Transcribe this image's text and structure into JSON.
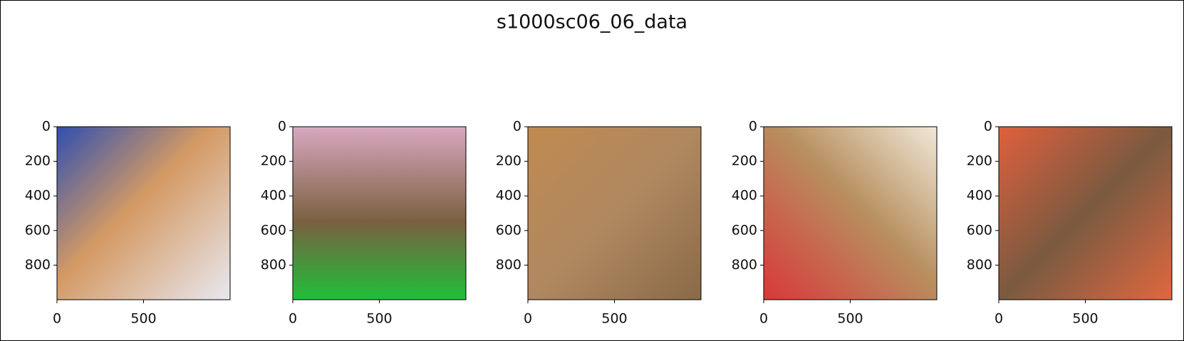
{
  "title": "s1000sc06_06_data",
  "chart_data": [
    {
      "type": "image",
      "xlim": [
        0,
        1000
      ],
      "ylim": [
        1000,
        0
      ],
      "xticks": [
        0,
        500
      ],
      "yticks": [
        0,
        200,
        400,
        600,
        800
      ]
    },
    {
      "type": "image",
      "xlim": [
        0,
        1000
      ],
      "ylim": [
        1000,
        0
      ],
      "xticks": [
        0,
        500
      ],
      "yticks": [
        0,
        200,
        400,
        600,
        800
      ]
    },
    {
      "type": "image",
      "xlim": [
        0,
        1000
      ],
      "ylim": [
        1000,
        0
      ],
      "xticks": [
        0,
        500
      ],
      "yticks": [
        0,
        200,
        400,
        600,
        800
      ]
    },
    {
      "type": "image",
      "xlim": [
        0,
        1000
      ],
      "ylim": [
        1000,
        0
      ],
      "xticks": [
        0,
        500
      ],
      "yticks": [
        0,
        200,
        400,
        600,
        800
      ]
    },
    {
      "type": "image",
      "xlim": [
        0,
        1000
      ],
      "ylim": [
        1000,
        0
      ],
      "xticks": [
        0,
        500
      ],
      "yticks": [
        0,
        200,
        400,
        600,
        800
      ]
    }
  ]
}
